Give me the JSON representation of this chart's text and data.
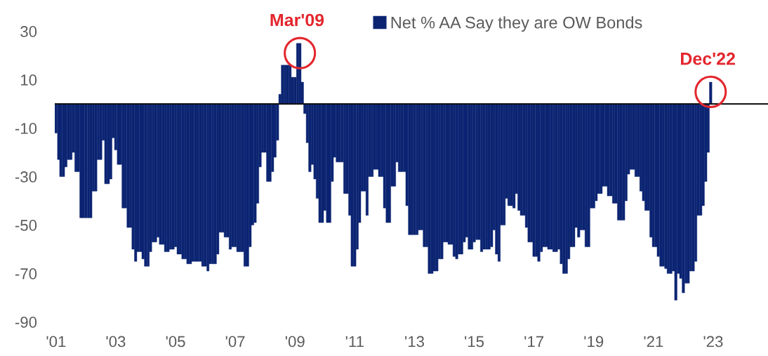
{
  "chart_data": {
    "type": "bar",
    "x": [
      "2001-01",
      "2001-02",
      "2001-03",
      "2001-04",
      "2001-05",
      "2001-06",
      "2001-07",
      "2001-08",
      "2001-09",
      "2001-10",
      "2001-11",
      "2001-12",
      "2002-01",
      "2002-02",
      "2002-03",
      "2002-04",
      "2002-05",
      "2002-06",
      "2002-07",
      "2002-08",
      "2002-09",
      "2002-10",
      "2002-11",
      "2002-12",
      "2003-01",
      "2003-02",
      "2003-03",
      "2003-04",
      "2003-05",
      "2003-06",
      "2003-07",
      "2003-08",
      "2003-09",
      "2003-10",
      "2003-11",
      "2003-12",
      "2004-01",
      "2004-02",
      "2004-03",
      "2004-04",
      "2004-05",
      "2004-06",
      "2004-07",
      "2004-08",
      "2004-09",
      "2004-10",
      "2004-11",
      "2004-12",
      "2005-01",
      "2005-02",
      "2005-03",
      "2005-04",
      "2005-05",
      "2005-06",
      "2005-07",
      "2005-08",
      "2005-09",
      "2005-10",
      "2005-11",
      "2005-12",
      "2006-01",
      "2006-02",
      "2006-03",
      "2006-04",
      "2006-05",
      "2006-06",
      "2006-07",
      "2006-08",
      "2006-09",
      "2006-10",
      "2006-11",
      "2006-12",
      "2007-01",
      "2007-02",
      "2007-03",
      "2007-04",
      "2007-05",
      "2007-06",
      "2007-07",
      "2007-08",
      "2007-09",
      "2007-10",
      "2007-11",
      "2007-12",
      "2008-01",
      "2008-02",
      "2008-03",
      "2008-04",
      "2008-05",
      "2008-06",
      "2008-07",
      "2008-08",
      "2008-09",
      "2008-10",
      "2008-11",
      "2008-12",
      "2009-01",
      "2009-02",
      "2009-03",
      "2009-04",
      "2009-05",
      "2009-06",
      "2009-07",
      "2009-08",
      "2009-09",
      "2009-10",
      "2009-11",
      "2009-12",
      "2010-01",
      "2010-02",
      "2010-03",
      "2010-04",
      "2010-05",
      "2010-06",
      "2010-07",
      "2010-08",
      "2010-09",
      "2010-10",
      "2010-11",
      "2010-12",
      "2011-01",
      "2011-02",
      "2011-03",
      "2011-04",
      "2011-05",
      "2011-06",
      "2011-07",
      "2011-08",
      "2011-09",
      "2011-10",
      "2011-11",
      "2011-12",
      "2012-01",
      "2012-02",
      "2012-03",
      "2012-04",
      "2012-05",
      "2012-06",
      "2012-07",
      "2012-08",
      "2012-09",
      "2012-10",
      "2012-11",
      "2012-12",
      "2013-01",
      "2013-02",
      "2013-03",
      "2013-04",
      "2013-05",
      "2013-06",
      "2013-07",
      "2013-08",
      "2013-09",
      "2013-10",
      "2013-11",
      "2013-12",
      "2014-01",
      "2014-02",
      "2014-03",
      "2014-04",
      "2014-05",
      "2014-06",
      "2014-07",
      "2014-08",
      "2014-09",
      "2014-10",
      "2014-11",
      "2014-12",
      "2015-01",
      "2015-02",
      "2015-03",
      "2015-04",
      "2015-05",
      "2015-06",
      "2015-07",
      "2015-08",
      "2015-09",
      "2015-10",
      "2015-11",
      "2015-12",
      "2016-01",
      "2016-02",
      "2016-03",
      "2016-04",
      "2016-05",
      "2016-06",
      "2016-07",
      "2016-08",
      "2016-09",
      "2016-10",
      "2016-11",
      "2016-12",
      "2017-01",
      "2017-02",
      "2017-03",
      "2017-04",
      "2017-05",
      "2017-06",
      "2017-07",
      "2017-08",
      "2017-09",
      "2017-10",
      "2017-11",
      "2017-12",
      "2018-01",
      "2018-02",
      "2018-03",
      "2018-04",
      "2018-05",
      "2018-06",
      "2018-07",
      "2018-08",
      "2018-09",
      "2018-10",
      "2018-11",
      "2018-12",
      "2019-01",
      "2019-02",
      "2019-03",
      "2019-04",
      "2019-05",
      "2019-06",
      "2019-07",
      "2019-08",
      "2019-09",
      "2019-10",
      "2019-11",
      "2019-12",
      "2020-01",
      "2020-02",
      "2020-03",
      "2020-04",
      "2020-05",
      "2020-06",
      "2020-07",
      "2020-08",
      "2020-09",
      "2020-10",
      "2020-11",
      "2020-12",
      "2021-01",
      "2021-02",
      "2021-03",
      "2021-04",
      "2021-05",
      "2021-06",
      "2021-07",
      "2021-08",
      "2021-09",
      "2021-10",
      "2021-11",
      "2021-12",
      "2022-01",
      "2022-02",
      "2022-03",
      "2022-04",
      "2022-05",
      "2022-06",
      "2022-07",
      "2022-08",
      "2022-09",
      "2022-10",
      "2022-11",
      "2022-12"
    ],
    "series": [
      {
        "name": "Net % AA Say they are OW Bonds",
        "color": "#0b2472",
        "values": [
          -12,
          -23,
          -30,
          -30,
          -26,
          -23,
          -23,
          -20,
          -28,
          -28,
          -47,
          -47,
          -47,
          -47,
          -47,
          -36,
          -36,
          -23,
          -23,
          -15,
          -33,
          -33,
          -31,
          -14,
          -19,
          -25,
          -25,
          -43,
          -43,
          -51,
          -51,
          -60,
          -65,
          -61,
          -61,
          -64,
          -67,
          -67,
          -61,
          -57,
          -57,
          -55,
          -58,
          -58,
          -61,
          -61,
          -60,
          -60,
          -59,
          -62,
          -62,
          -64,
          -64,
          -66,
          -66,
          -65,
          -65,
          -65,
          -65,
          -67,
          -67,
          -69,
          -66,
          -66,
          -66,
          -62,
          -53,
          -53,
          -55,
          -55,
          -60,
          -59,
          -59,
          -61,
          -61,
          -61,
          -67,
          -67,
          -59,
          -50,
          -49,
          -41,
          -26,
          -20,
          -20,
          -32,
          -32,
          -28,
          -22,
          -15,
          4,
          16,
          16,
          16,
          16,
          11,
          11,
          25,
          25,
          9,
          -4,
          -16,
          -28,
          -25,
          -31,
          -39,
          -49,
          -49,
          -44,
          -49,
          -49,
          -32,
          -22,
          -24,
          -24,
          -24,
          -37,
          -37,
          -46,
          -67,
          -67,
          -60,
          -49,
          -36,
          -36,
          -46,
          -30,
          -30,
          -27,
          -27,
          -30,
          -30,
          -43,
          -49,
          -49,
          -34,
          -34,
          -24,
          -28,
          -28,
          -28,
          -42,
          -54,
          -54,
          -54,
          -54,
          -52,
          -52,
          -59,
          -59,
          -70,
          -70,
          -69,
          -69,
          -64,
          -64,
          -57,
          -57,
          -58,
          -58,
          -63,
          -64,
          -62,
          -62,
          -57,
          -55,
          -60,
          -60,
          -57,
          -56,
          -56,
          -61,
          -60,
          -60,
          -60,
          -59,
          -52,
          -62,
          -65,
          -50,
          -50,
          -39,
          -42,
          -42,
          -43,
          -37,
          -44,
          -46,
          -46,
          -51,
          -57,
          -57,
          -63,
          -63,
          -65,
          -61,
          -59,
          -59,
          -60,
          -60,
          -61,
          -61,
          -60,
          -66,
          -70,
          -70,
          -64,
          -59,
          -59,
          -51,
          -55,
          -52,
          -52,
          -59,
          -59,
          -43,
          -43,
          -40,
          -37,
          -37,
          -34,
          -34,
          -38,
          -38,
          -41,
          -41,
          -48,
          -48,
          -48,
          -40,
          -29,
          -27,
          -27,
          -30,
          -30,
          -36,
          -40,
          -44,
          -44,
          -55,
          -59,
          -59,
          -63,
          -67,
          -67,
          -68,
          -70,
          -70,
          -69,
          -81,
          -70,
          -72,
          -78,
          -74,
          -74,
          -69,
          -69,
          -65,
          -46,
          -46,
          -42,
          -32,
          -20,
          9
        ]
      }
    ],
    "xlim": [
      "2000-12-16",
      "2024-11"
    ],
    "xticks": [
      {
        "value": "2001",
        "label": "'01"
      },
      {
        "value": "2003",
        "label": "'03"
      },
      {
        "value": "2005",
        "label": "'05"
      },
      {
        "value": "2007",
        "label": "'07"
      },
      {
        "value": "2009",
        "label": "'09"
      },
      {
        "value": "2011",
        "label": "'11"
      },
      {
        "value": "2013",
        "label": "'13"
      },
      {
        "value": "2015",
        "label": "'15"
      },
      {
        "value": "2017",
        "label": "'17"
      },
      {
        "value": "2019",
        "label": "'19"
      },
      {
        "value": "2021",
        "label": "'21"
      },
      {
        "value": "2023",
        "label": "'23"
      }
    ],
    "ylim": [
      -90,
      30
    ],
    "yticks": [
      30,
      10,
      -10,
      -30,
      -50,
      -70,
      -90
    ],
    "legend": "top",
    "ref_lines": [
      {
        "axis": "y",
        "value": 0,
        "color": "#111111"
      }
    ],
    "annotations": [
      {
        "text": "Mar'09",
        "x": "2009-03",
        "y": 25
      },
      {
        "text": "Dec'22",
        "x": "2022-12",
        "y": 9
      }
    ]
  }
}
